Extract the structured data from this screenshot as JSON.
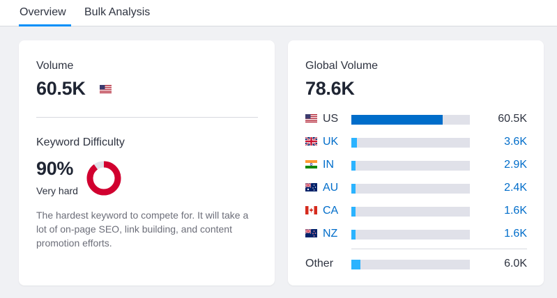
{
  "tabs": [
    {
      "label": "Overview",
      "active": true
    },
    {
      "label": "Bulk Analysis",
      "active": false
    }
  ],
  "volume": {
    "label": "Volume",
    "value": "60.5K",
    "flag": "us-flag-icon"
  },
  "keyword_difficulty": {
    "label": "Keyword Difficulty",
    "value": "90%",
    "percent": 90,
    "level": "Very hard",
    "description": "The hardest keyword to compete for. It will take a lot of on-page SEO, link building, and content promotion efforts.",
    "color": "#d1002f"
  },
  "global_volume": {
    "label": "Global Volume",
    "value": "78.6K",
    "countries": [
      {
        "code": "US",
        "value": "60.5K",
        "share": 0.77,
        "flag": "us-flag-icon",
        "link": false,
        "bar_color": "#006dca"
      },
      {
        "code": "UK",
        "value": "3.6K",
        "share": 0.046,
        "flag": "uk-flag-icon",
        "link": true,
        "bar_color": "#2bb3ff"
      },
      {
        "code": "IN",
        "value": "2.9K",
        "share": 0.037,
        "flag": "in-flag-icon",
        "link": true,
        "bar_color": "#2bb3ff"
      },
      {
        "code": "AU",
        "value": "2.4K",
        "share": 0.031,
        "flag": "au-flag-icon",
        "link": true,
        "bar_color": "#2bb3ff"
      },
      {
        "code": "CA",
        "value": "1.6K",
        "share": 0.02,
        "flag": "ca-flag-icon",
        "link": true,
        "bar_color": "#2bb3ff"
      },
      {
        "code": "NZ",
        "value": "1.6K",
        "share": 0.02,
        "flag": "nz-flag-icon",
        "link": true,
        "bar_color": "#2bb3ff"
      }
    ],
    "other": {
      "label": "Other",
      "value": "6.0K",
      "share": 0.076,
      "bar_color": "#2bb3ff"
    }
  },
  "colors": {
    "accent": "#008ff8",
    "link": "#006dca",
    "bar_track": "#e0e1e9"
  }
}
